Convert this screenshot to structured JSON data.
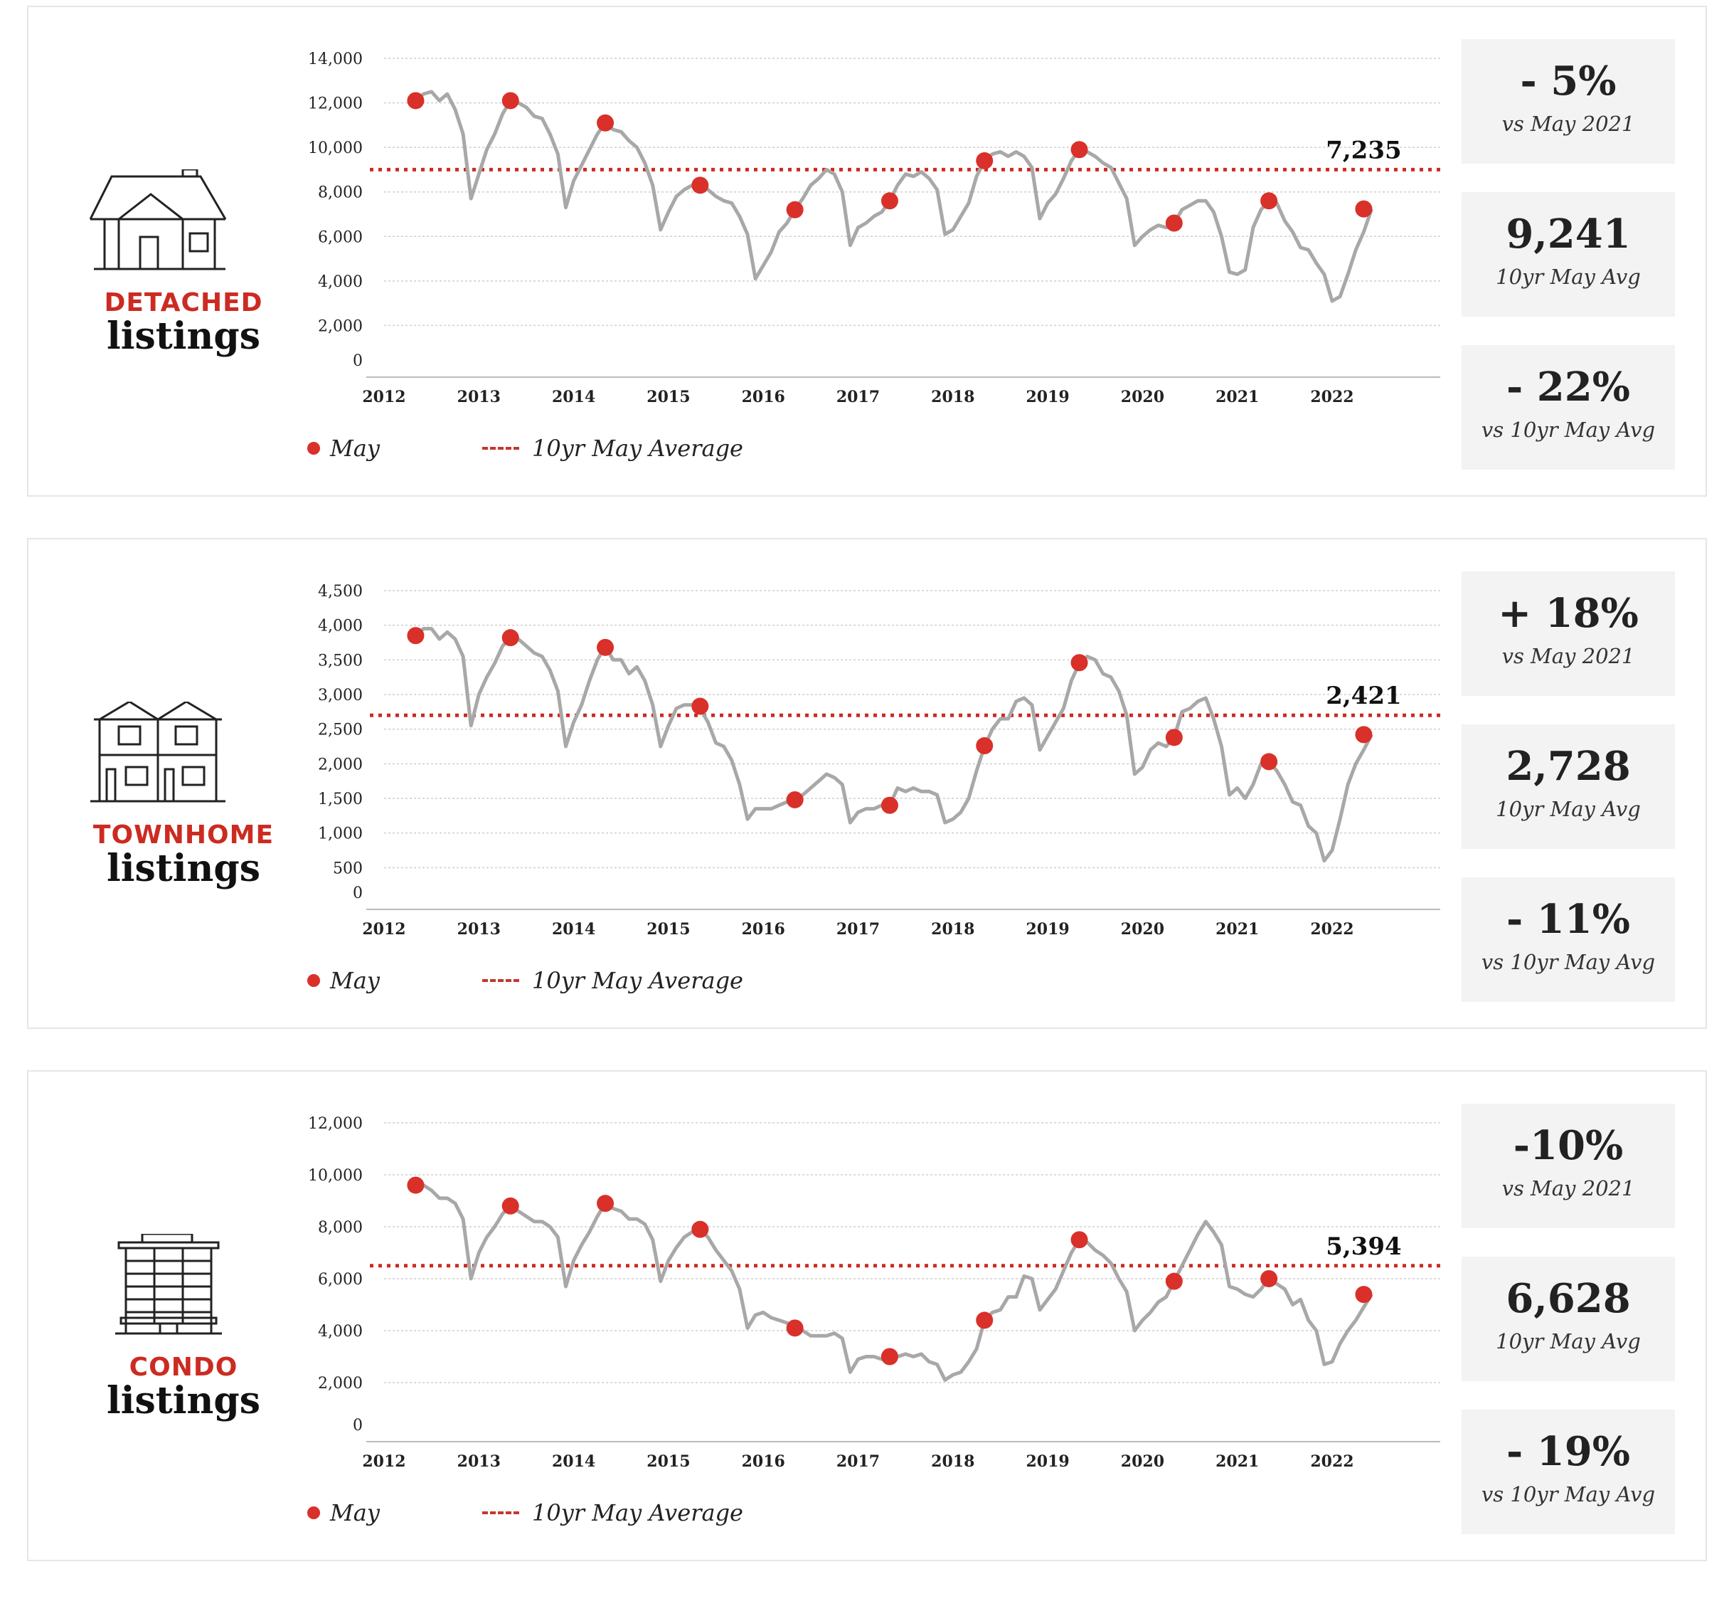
{
  "legend": {
    "may": "May",
    "avg": "10yr May Average"
  },
  "years": [
    "2012",
    "2013",
    "2014",
    "2015",
    "2016",
    "2017",
    "2018",
    "2019",
    "2020",
    "2021",
    "2022"
  ],
  "colors": {
    "accent": "#cc2b22",
    "line": "#a8a8a8",
    "dot": "#d9302a"
  },
  "panels": [
    {
      "type_label": "DETACHED",
      "sub_label": "listings",
      "icon": "detached-house-icon",
      "stats": [
        {
          "value": "- 5%",
          "label": "vs May 2021"
        },
        {
          "value": "9,241",
          "label": "10yr  May Avg"
        },
        {
          "value": "- 22%",
          "label": "vs 10yr May Avg"
        }
      ],
      "chart_data": {
        "type": "line",
        "ylim": [
          0,
          14000
        ],
        "yticks": [
          "0",
          "2,000",
          "4,000",
          "6,000",
          "8,000",
          "10,000",
          "12,000",
          "14,000"
        ],
        "ytick_values": [
          0,
          2000,
          4000,
          6000,
          8000,
          10000,
          12000,
          14000
        ],
        "x_start": "2012-01",
        "monthly_values": [
          null,
          null,
          null,
          null,
          12100,
          12400,
          12500,
          12100,
          12400,
          11700,
          10600,
          7700,
          8800,
          9900,
          10600,
          11500,
          12100,
          12000,
          11800,
          11400,
          11300,
          10600,
          9700,
          7300,
          8500,
          9200,
          9900,
          10600,
          11100,
          10800,
          10700,
          10300,
          10000,
          9300,
          8300,
          6300,
          7100,
          7800,
          8100,
          8300,
          8300,
          8100,
          7800,
          7600,
          7500,
          6900,
          6100,
          4100,
          4700,
          5300,
          6200,
          6600,
          7200,
          7700,
          8300,
          8600,
          9000,
          8800,
          8000,
          5600,
          6400,
          6600,
          6900,
          7100,
          7600,
          8300,
          8800,
          8700,
          8900,
          8600,
          8100,
          6100,
          6300,
          6900,
          7500,
          8700,
          9400,
          9700,
          9800,
          9600,
          9800,
          9600,
          9100,
          6800,
          7500,
          7900,
          8600,
          9400,
          9900,
          9800,
          9600,
          9300,
          9100,
          8400,
          7700,
          5600,
          6000,
          6300,
          6500,
          6400,
          6600,
          7200,
          7400,
          7600,
          7600,
          7100,
          6000,
          4400,
          4300,
          4500,
          6400,
          7200,
          7600,
          7500,
          6700,
          6200,
          5500,
          5400,
          4800,
          4300,
          3100,
          3300,
          4300,
          5400,
          6200,
          7235
        ],
        "may_points": [
          {
            "x": "2012-05",
            "y": 12100
          },
          {
            "x": "2013-05",
            "y": 12100
          },
          {
            "x": "2014-05",
            "y": 11100
          },
          {
            "x": "2015-05",
            "y": 8300
          },
          {
            "x": "2016-05",
            "y": 7200
          },
          {
            "x": "2017-05",
            "y": 7600
          },
          {
            "x": "2018-05",
            "y": 9400
          },
          {
            "x": "2019-05",
            "y": 9900
          },
          {
            "x": "2020-05",
            "y": 6600
          },
          {
            "x": "2021-05",
            "y": 7600
          },
          {
            "x": "2022-05",
            "y": 7235
          }
        ],
        "avg": 9000,
        "annotation": "7,235"
      }
    },
    {
      "type_label": "TOWNHOME",
      "sub_label": "listings",
      "icon": "townhome-icon",
      "stats": [
        {
          "value": "+ 18%",
          "label": "vs May 2021"
        },
        {
          "value": "2,728",
          "label": "10yr  May Avg"
        },
        {
          "value": "- 11%",
          "label": "vs 10yr May Avg"
        }
      ],
      "chart_data": {
        "type": "line",
        "ylim": [
          0,
          4500
        ],
        "yticks": [
          "0",
          "500",
          "1,000",
          "1,500",
          "2,000",
          "2,500",
          "3,000",
          "3,500",
          "4,000",
          "4,500"
        ],
        "ytick_values": [
          0,
          500,
          1000,
          1500,
          2000,
          2500,
          3000,
          3500,
          4000,
          4500
        ],
        "x_start": "2012-01",
        "monthly_values": [
          null,
          null,
          null,
          null,
          3850,
          3950,
          3950,
          3800,
          3900,
          3800,
          3550,
          2550,
          3000,
          3250,
          3450,
          3700,
          3820,
          3800,
          3700,
          3600,
          3550,
          3350,
          3050,
          2250,
          2600,
          2850,
          3200,
          3500,
          3700,
          3500,
          3500,
          3300,
          3400,
          3200,
          2850,
          2250,
          2550,
          2800,
          2850,
          2850,
          2800,
          2600,
          2300,
          2250,
          2050,
          1700,
          1200,
          1350,
          1350,
          1350,
          1400,
          1450,
          1450,
          1550,
          1650,
          1750,
          1850,
          1800,
          1700,
          1150,
          1300,
          1350,
          1350,
          1400,
          1400,
          1650,
          1600,
          1650,
          1600,
          1600,
          1550,
          1150,
          1200,
          1300,
          1500,
          1900,
          2250,
          2500,
          2650,
          2650,
          2900,
          2950,
          2850,
          2200,
          2400,
          2600,
          2800,
          3200,
          3450,
          3550,
          3500,
          3300,
          3250,
          3050,
          2700,
          1850,
          1950,
          2200,
          2300,
          2250,
          2380,
          2750,
          2800,
          2900,
          2950,
          2650,
          2250,
          1550,
          1650,
          1500,
          1700,
          2000,
          2030,
          1900,
          1700,
          1450,
          1400,
          1100,
          1000,
          600,
          750,
          1200,
          1700,
          2000,
          2200,
          2421
        ],
        "may_points": [
          {
            "x": "2012-05",
            "y": 3850
          },
          {
            "x": "2013-05",
            "y": 3820
          },
          {
            "x": "2014-05",
            "y": 3680
          },
          {
            "x": "2015-05",
            "y": 2830
          },
          {
            "x": "2016-05",
            "y": 1480
          },
          {
            "x": "2017-05",
            "y": 1400
          },
          {
            "x": "2018-05",
            "y": 2260
          },
          {
            "x": "2019-05",
            "y": 3460
          },
          {
            "x": "2020-05",
            "y": 2380
          },
          {
            "x": "2021-05",
            "y": 2030
          },
          {
            "x": "2022-05",
            "y": 2421
          }
        ],
        "avg": 2700,
        "annotation": "2,421"
      }
    },
    {
      "type_label": "CONDO",
      "sub_label": "listings",
      "icon": "condo-building-icon",
      "stats": [
        {
          "value": "-10%",
          "label": "vs May 2021"
        },
        {
          "value": "6,628",
          "label": "10yr  May Avg"
        },
        {
          "value": "- 19%",
          "label": "vs 10yr May Avg"
        }
      ],
      "chart_data": {
        "type": "line",
        "ylim": [
          0,
          12000
        ],
        "yticks": [
          "0",
          "2,000",
          "4,000",
          "6,000",
          "8,000",
          "10,000",
          "12,000"
        ],
        "ytick_values": [
          0,
          2000,
          4000,
          6000,
          8000,
          10000,
          12000
        ],
        "x_start": "2012-01",
        "monthly_values": [
          null,
          null,
          null,
          null,
          9600,
          9600,
          9400,
          9100,
          9100,
          8900,
          8300,
          6000,
          7000,
          7600,
          8000,
          8500,
          8800,
          8600,
          8400,
          8200,
          8200,
          8000,
          7600,
          5700,
          6700,
          7300,
          7800,
          8400,
          8900,
          8700,
          8600,
          8300,
          8300,
          8100,
          7500,
          5900,
          6700,
          7200,
          7600,
          7800,
          7900,
          7600,
          7100,
          6700,
          6300,
          5600,
          4100,
          4600,
          4700,
          4500,
          4400,
          4300,
          4100,
          4000,
          3800,
          3800,
          3800,
          3900,
          3700,
          2400,
          2900,
          3000,
          3000,
          2900,
          2900,
          3000,
          3100,
          3000,
          3100,
          2800,
          2700,
          2100,
          2300,
          2400,
          2800,
          3300,
          4400,
          4700,
          4800,
          5300,
          5300,
          6100,
          6000,
          4800,
          5200,
          5600,
          6300,
          7000,
          7500,
          7400,
          7100,
          6900,
          6600,
          6000,
          5500,
          4000,
          4400,
          4700,
          5100,
          5300,
          5900,
          6500,
          7100,
          7700,
          8200,
          7800,
          7300,
          5700,
          5600,
          5400,
          5300,
          5600,
          6000,
          5800,
          5600,
          5000,
          5200,
          4400,
          4000,
          2700,
          2800,
          3500,
          4000,
          4400,
          4900,
          5394
        ],
        "may_points": [
          {
            "x": "2012-05",
            "y": 9600
          },
          {
            "x": "2013-05",
            "y": 8800
          },
          {
            "x": "2014-05",
            "y": 8900
          },
          {
            "x": "2015-05",
            "y": 7900
          },
          {
            "x": "2016-05",
            "y": 4100
          },
          {
            "x": "2017-05",
            "y": 3000
          },
          {
            "x": "2018-05",
            "y": 4400
          },
          {
            "x": "2019-05",
            "y": 7500
          },
          {
            "x": "2020-05",
            "y": 5900
          },
          {
            "x": "2021-05",
            "y": 6000
          },
          {
            "x": "2022-05",
            "y": 5394
          }
        ],
        "avg": 6500,
        "annotation": "5,394"
      }
    }
  ]
}
